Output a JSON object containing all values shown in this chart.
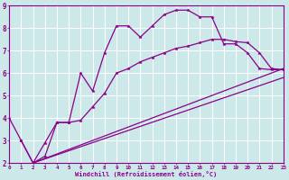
{
  "xlabel": "Windchill (Refroidissement éolien,°C)",
  "bg_color": "#cce8e8",
  "grid_color": "#ffffff",
  "line_color": "#8b008b",
  "xmin": 0,
  "xmax": 23,
  "ymin": 2,
  "ymax": 9,
  "yticks": [
    2,
    3,
    4,
    5,
    6,
    7,
    8,
    9
  ],
  "xticks": [
    0,
    1,
    2,
    3,
    4,
    5,
    6,
    7,
    8,
    9,
    10,
    11,
    12,
    13,
    14,
    15,
    16,
    17,
    18,
    19,
    20,
    21,
    22,
    23
  ],
  "curve1_x": [
    0,
    1,
    2,
    3,
    4,
    5,
    6,
    7,
    8,
    9,
    10,
    11,
    12,
    13,
    14,
    15,
    16,
    17,
    18,
    19,
    20,
    21,
    22,
    23
  ],
  "curve1_y": [
    4.0,
    3.0,
    2.0,
    2.3,
    3.8,
    3.8,
    6.0,
    5.2,
    6.9,
    8.1,
    8.1,
    7.6,
    8.1,
    8.6,
    8.8,
    8.8,
    8.5,
    8.5,
    7.3,
    7.3,
    6.9,
    6.2,
    6.15,
    6.15
  ],
  "curve2_x": [
    1,
    2,
    3,
    4,
    5,
    6,
    7,
    8,
    9,
    10,
    11,
    12,
    13,
    14,
    15,
    16,
    17,
    18,
    19,
    20,
    21,
    22,
    23
  ],
  "curve2_y": [
    3.0,
    2.0,
    2.9,
    3.8,
    3.8,
    3.9,
    4.5,
    5.1,
    6.0,
    6.2,
    6.5,
    6.7,
    6.9,
    7.1,
    7.2,
    7.35,
    7.5,
    7.5,
    7.4,
    7.35,
    6.9,
    6.2,
    6.15
  ],
  "line1_x": [
    2,
    23
  ],
  "line1_y": [
    2.0,
    6.2
  ],
  "line2_x": [
    2,
    23
  ],
  "line2_y": [
    2.0,
    5.8
  ]
}
